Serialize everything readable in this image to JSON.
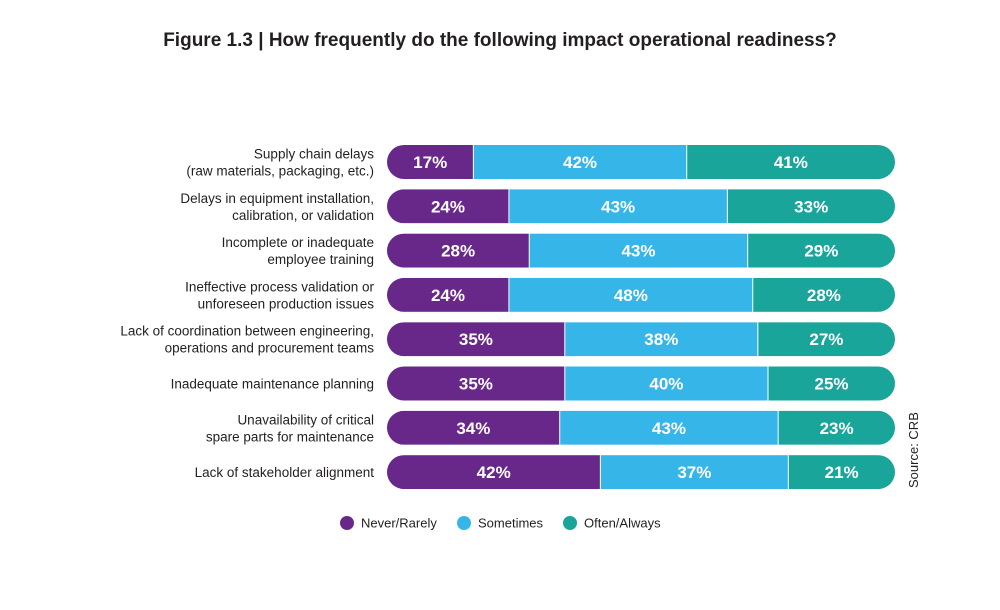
{
  "chart_data": {
    "type": "bar",
    "orientation": "horizontal",
    "stacked": true,
    "title": "Figure 1.3 | How frequently do the following impact operational readiness?",
    "categories": [
      [
        "Supply chain delays",
        "(raw materials, packaging, etc.)"
      ],
      [
        "Delays in equipment installation,",
        "calibration, or validation"
      ],
      [
        "Incomplete or inadequate",
        "employee training"
      ],
      [
        "Ineffective process validation or",
        "unforeseen production issues"
      ],
      [
        "Lack of coordination between engineering,",
        "operations and procurement teams"
      ],
      [
        "Inadequate maintenance planning"
      ],
      [
        "Unavailability of critical",
        "spare parts for maintenance"
      ],
      [
        "Lack of stakeholder alignment"
      ]
    ],
    "series": [
      {
        "name": "Never/Rarely",
        "color": "#68288a",
        "values": [
          17,
          24,
          28,
          24,
          35,
          35,
          34,
          42
        ]
      },
      {
        "name": "Sometimes",
        "color": "#36b5e8",
        "values": [
          42,
          43,
          43,
          48,
          38,
          40,
          43,
          37
        ]
      },
      {
        "name": "Often/Always",
        "color": "#1aa59b",
        "values": [
          41,
          33,
          29,
          28,
          27,
          25,
          23,
          21
        ]
      }
    ],
    "value_suffix": "%",
    "xlim": [
      0,
      100
    ],
    "legend_position": "bottom",
    "grid": false,
    "source": "Source: CRB"
  }
}
